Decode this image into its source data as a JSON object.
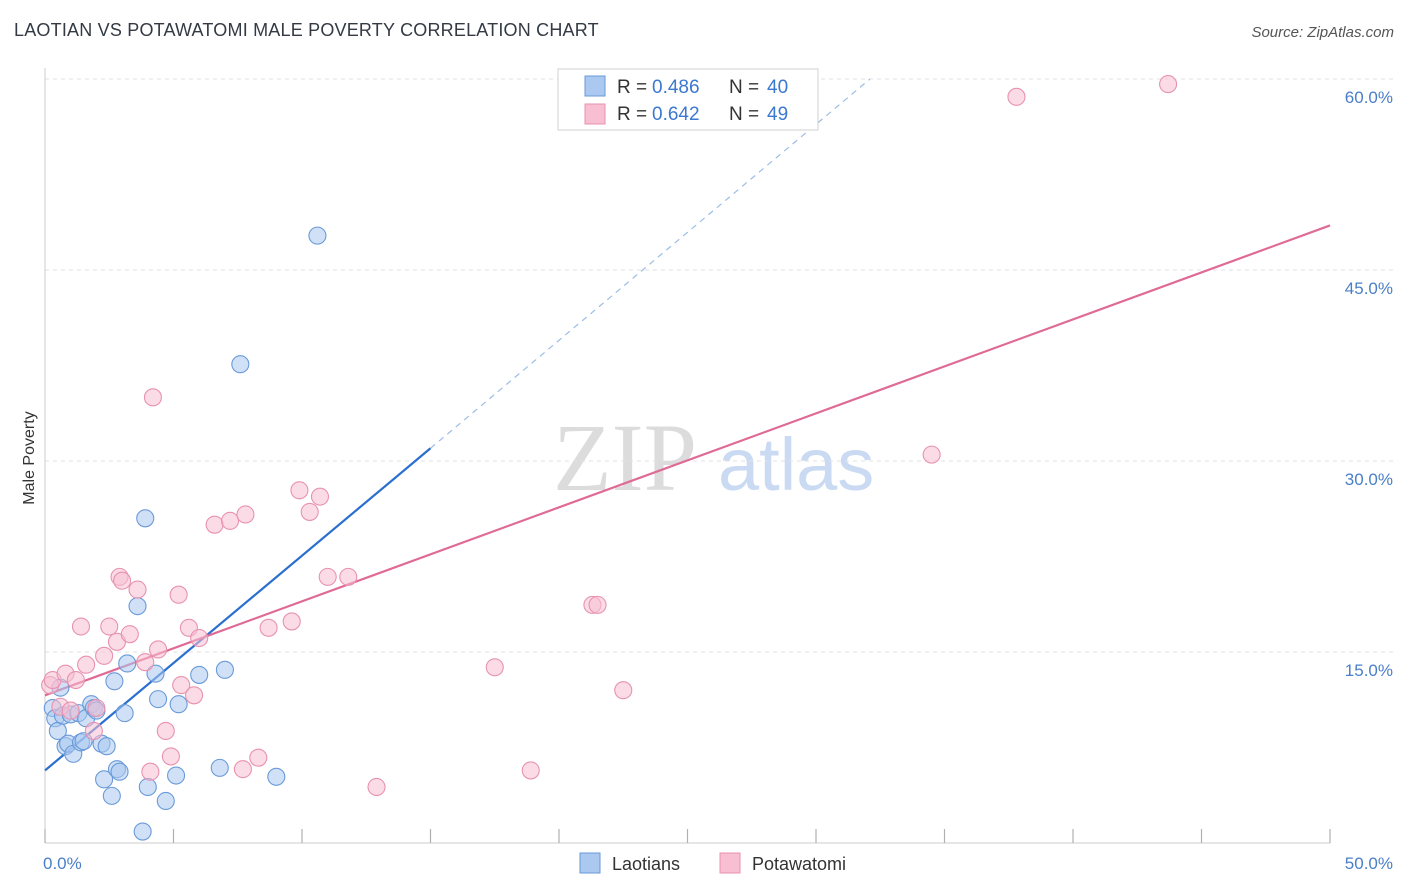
{
  "header": {
    "title": "LAOTIAN VS POTAWATOMI MALE POVERTY CORRELATION CHART",
    "source": "Source: ZipAtlas.com"
  },
  "watermark": {
    "zip": "ZIP",
    "atlas": "atlas"
  },
  "legend": {
    "laotians": {
      "r_label": "R = ",
      "r_value": "0.486",
      "n_label": "N = ",
      "n_value": "40"
    },
    "potawatomi": {
      "r_label": "R = ",
      "r_value": "0.642",
      "n_label": "N = ",
      "n_value": "49"
    }
  },
  "bottom_legend": {
    "laotians": "Laotians",
    "potawatomi": "Potawatomi"
  },
  "colors": {
    "laotians_fill": "#aac8f0",
    "laotians_stroke": "#6a9ad8",
    "laotians_line": "#2a6fd0",
    "potawatomi_fill": "#f7bfd1",
    "potawatomi_stroke": "#e892b0",
    "potawatomi_line": "#e06a96",
    "tick_text": "#4a7fc8",
    "grid": "#e2e2e2"
  },
  "chart_data": {
    "type": "scatter",
    "title": "LAOTIAN VS POTAWATOMI MALE POVERTY CORRELATION CHART",
    "xlabel": "",
    "ylabel": "Male Poverty",
    "xlim": [
      0,
      50
    ],
    "ylim": [
      0,
      60
    ],
    "x_tick_labels": [
      "0.0%",
      "50.0%"
    ],
    "y_ticks": [
      15,
      30,
      45,
      60
    ],
    "y_tick_labels": [
      "15.0%",
      "30.0%",
      "45.0%",
      "60.0%"
    ],
    "series": [
      {
        "name": "Laotians",
        "R": 0.486,
        "N": 40,
        "trend": {
          "x_start": 0,
          "y_start": 5.7,
          "x_end": 15,
          "y_end": 31.0,
          "dashed_to_x": 32.1,
          "dashed_to_y": 60
        },
        "points": [
          [
            0.3,
            10.6
          ],
          [
            0.4,
            9.8
          ],
          [
            0.5,
            8.8
          ],
          [
            0.6,
            12.2
          ],
          [
            0.7,
            10.0
          ],
          [
            0.8,
            7.6
          ],
          [
            0.9,
            7.8
          ],
          [
            1.0,
            10.1
          ],
          [
            1.1,
            7.0
          ],
          [
            1.3,
            10.2
          ],
          [
            1.4,
            7.9
          ],
          [
            1.5,
            8.0
          ],
          [
            1.6,
            9.8
          ],
          [
            1.8,
            10.9
          ],
          [
            1.9,
            10.6
          ],
          [
            2.0,
            10.4
          ],
          [
            2.2,
            7.8
          ],
          [
            2.3,
            5.0
          ],
          [
            2.4,
            7.6
          ],
          [
            2.6,
            3.7
          ],
          [
            2.7,
            12.7
          ],
          [
            2.8,
            5.8
          ],
          [
            2.9,
            5.6
          ],
          [
            3.1,
            10.2
          ],
          [
            3.2,
            14.1
          ],
          [
            3.6,
            18.6
          ],
          [
            3.8,
            0.9
          ],
          [
            3.9,
            25.5
          ],
          [
            4.0,
            4.4
          ],
          [
            4.3,
            13.3
          ],
          [
            4.4,
            11.3
          ],
          [
            4.7,
            3.3
          ],
          [
            5.1,
            5.3
          ],
          [
            5.2,
            10.9
          ],
          [
            6.0,
            13.2
          ],
          [
            6.8,
            5.9
          ],
          [
            7.0,
            13.6
          ],
          [
            7.6,
            37.6
          ],
          [
            9.0,
            5.2
          ],
          [
            10.6,
            47.7
          ]
        ]
      },
      {
        "name": "Potawatomi",
        "R": 0.642,
        "N": 49,
        "trend": {
          "x_start": 0,
          "y_start": 11.6,
          "x_end": 50,
          "y_end": 48.5
        },
        "points": [
          [
            0.2,
            12.4
          ],
          [
            0.3,
            12.8
          ],
          [
            0.6,
            10.7
          ],
          [
            0.8,
            13.3
          ],
          [
            1.0,
            10.4
          ],
          [
            1.2,
            12.8
          ],
          [
            1.4,
            17.0
          ],
          [
            1.6,
            14.0
          ],
          [
            1.9,
            8.8
          ],
          [
            2.0,
            10.6
          ],
          [
            2.3,
            14.7
          ],
          [
            2.5,
            17.0
          ],
          [
            2.8,
            15.8
          ],
          [
            2.9,
            20.9
          ],
          [
            3.0,
            20.6
          ],
          [
            3.3,
            16.4
          ],
          [
            3.6,
            19.9
          ],
          [
            3.9,
            14.2
          ],
          [
            4.1,
            5.6
          ],
          [
            4.2,
            35.0
          ],
          [
            4.4,
            15.2
          ],
          [
            4.7,
            8.8
          ],
          [
            4.9,
            6.8
          ],
          [
            5.2,
            19.5
          ],
          [
            5.3,
            12.4
          ],
          [
            5.6,
            16.9
          ],
          [
            5.8,
            11.6
          ],
          [
            6.0,
            16.1
          ],
          [
            6.6,
            25.0
          ],
          [
            7.2,
            25.3
          ],
          [
            7.7,
            5.8
          ],
          [
            7.8,
            25.8
          ],
          [
            8.3,
            6.7
          ],
          [
            8.7,
            16.9
          ],
          [
            9.6,
            17.4
          ],
          [
            9.9,
            27.7
          ],
          [
            10.3,
            26.0
          ],
          [
            10.7,
            27.2
          ],
          [
            11.0,
            20.9
          ],
          [
            11.8,
            20.9
          ],
          [
            12.9,
            4.4
          ],
          [
            17.5,
            13.8
          ],
          [
            18.9,
            5.7
          ],
          [
            21.3,
            18.7
          ],
          [
            21.5,
            18.7
          ],
          [
            22.5,
            12.0
          ],
          [
            34.5,
            30.5
          ],
          [
            37.8,
            58.6
          ],
          [
            43.7,
            59.6
          ]
        ]
      }
    ]
  }
}
